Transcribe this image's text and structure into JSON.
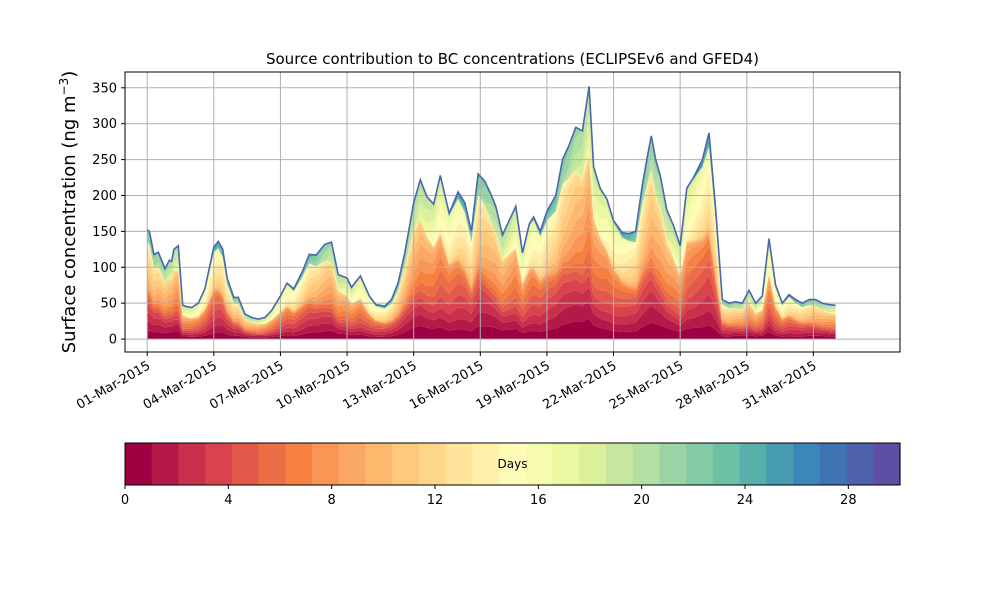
{
  "chart_data": {
    "type": "area",
    "title": "Source contribution to BC concentrations (ECLIPSEv6 and GFED4)",
    "xlabel": "",
    "ylabel": "Surface concentration (ng m",
    "ylabel_unit_exponent": "−3",
    "ylabel_suffix": ")",
    "ylim": [
      -18,
      372
    ],
    "yticks": [
      "0",
      "50",
      "100",
      "150",
      "200",
      "250",
      "300",
      "350"
    ],
    "ytick_values": [
      0,
      50,
      100,
      150,
      200,
      250,
      300,
      350
    ],
    "xlim_days": [
      -1.0,
      33.9
    ],
    "xticks": [
      "01-Mar-2015",
      "04-Mar-2015",
      "07-Mar-2015",
      "10-Mar-2015",
      "13-Mar-2015",
      "16-Mar-2015",
      "19-Mar-2015",
      "22-Mar-2015",
      "25-Mar-2015",
      "28-Mar-2015",
      "31-Mar-2015"
    ],
    "xtick_values": [
      0,
      3,
      6,
      9,
      12,
      15,
      18,
      21,
      24,
      27,
      30
    ],
    "grid": true,
    "total": {
      "x": [
        0,
        0.1,
        0.3,
        0.5,
        0.8,
        1.0,
        1.1,
        1.2,
        1.4,
        1.6,
        1.8,
        2.0,
        2.3,
        2.6,
        3.0,
        3.2,
        3.4,
        3.6,
        3.9,
        4.1,
        4.4,
        4.7,
        5.0,
        5.3,
        5.6,
        6.0,
        6.3,
        6.6,
        7.0,
        7.3,
        7.6,
        8.0,
        8.3,
        8.6,
        9.0,
        9.2,
        9.6,
        10.0,
        10.3,
        10.7,
        11.0,
        11.3,
        11.6,
        12.0,
        12.3,
        12.6,
        12.9,
        13.2,
        13.6,
        14.0,
        14.3,
        14.6,
        14.9,
        15.2,
        15.5,
        15.7,
        16.0,
        16.3,
        16.6,
        16.9,
        17.2,
        17.4,
        17.7,
        18.0,
        18.4,
        18.7,
        19.0,
        19.3,
        19.6,
        19.9,
        20.1,
        20.4,
        20.7,
        21.0,
        21.4,
        21.7,
        22.0,
        22.3,
        22.5,
        22.7,
        22.9,
        23.1,
        23.4,
        23.7,
        24.0,
        24.3,
        24.6,
        25.0,
        25.3,
        25.6,
        25.9,
        26.2,
        26.5,
        26.8,
        27.1,
        27.4,
        27.7,
        28.0,
        28.3,
        28.6,
        28.9,
        29.2,
        29.5,
        29.8,
        30.1,
        30.4,
        30.7,
        31.0
      ],
      "values": [
        152,
        150,
        118,
        121,
        98,
        110,
        108,
        125,
        130,
        47,
        45,
        44,
        50,
        70,
        128,
        136,
        125,
        85,
        58,
        58,
        35,
        30,
        28,
        30,
        40,
        60,
        78,
        70,
        95,
        118,
        117,
        132,
        135,
        90,
        85,
        72,
        88,
        60,
        48,
        46,
        55,
        78,
        120,
        190,
        222,
        198,
        188,
        228,
        175,
        205,
        190,
        150,
        230,
        220,
        200,
        185,
        145,
        165,
        185,
        120,
        160,
        170,
        150,
        178,
        200,
        250,
        270,
        295,
        290,
        352,
        240,
        210,
        195,
        165,
        148,
        147,
        150,
        215,
        250,
        283,
        250,
        228,
        180,
        158,
        130,
        210,
        225,
        250,
        287,
        180,
        55,
        50,
        52,
        50,
        68,
        50,
        60,
        140,
        75,
        50,
        62,
        55,
        50,
        55,
        55,
        50,
        48,
        47
      ]
    },
    "colorbar": {
      "label": "Days",
      "range": [
        0,
        30
      ],
      "ticks": [
        "0",
        "4",
        "8",
        "12",
        "16",
        "20",
        "24",
        "28"
      ],
      "tick_values": [
        0,
        4,
        8,
        12,
        16,
        20,
        24,
        28
      ],
      "colors": [
        "#9e0142",
        "#b41947",
        "#c9304b",
        "#d8434e",
        "#e35a4b",
        "#ec6e45",
        "#f5803f",
        "#f99656",
        "#fca865",
        "#fdba6f",
        "#fec97d",
        "#fed78a",
        "#fee49b",
        "#fff1aa",
        "#fffcb9",
        "#f6fbb0",
        "#ecf7a1",
        "#dcf09c",
        "#c7e7a0",
        "#b2dfa2",
        "#9ad4a4",
        "#82cba5",
        "#6bc1a6",
        "#58b0aa",
        "#479cb2",
        "#3a88b8",
        "#3f74b3",
        "#4d62ab",
        "#5e4fa2"
      ]
    }
  }
}
